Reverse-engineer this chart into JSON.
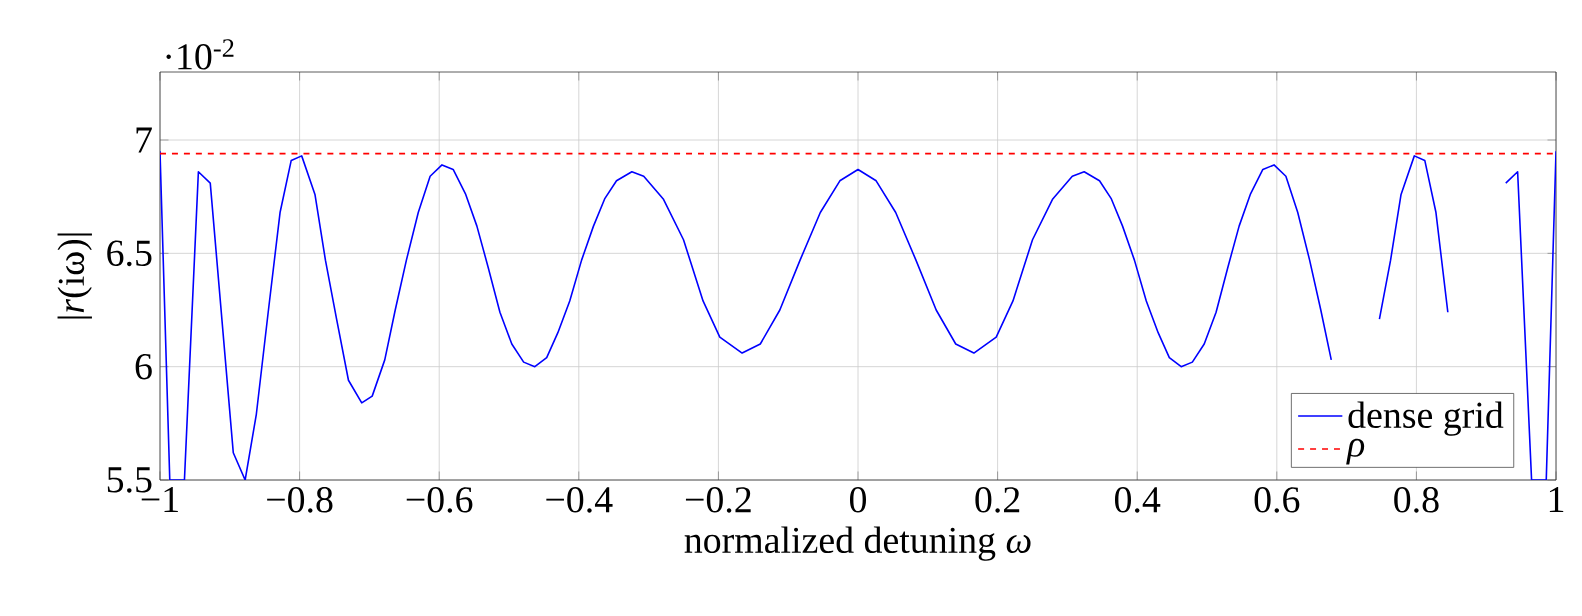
{
  "chart_data": {
    "type": "line",
    "xlabel": "normalized detuning *ω*",
    "ylabel": "|*r*(iω)|",
    "annotations": [
      "·10$^{-2}$"
    ],
    "xlim": [
      -1,
      1
    ],
    "ylim": [
      5.5,
      7.3
    ],
    "xticks": [
      {
        "value": -1,
        "label": "−1"
      },
      {
        "value": -0.8,
        "label": "−0.8"
      },
      {
        "value": -0.6,
        "label": "−0.6"
      },
      {
        "value": -0.4,
        "label": "−0.4"
      },
      {
        "value": -0.2,
        "label": "−0.2"
      },
      0,
      0.2,
      0.4,
      0.6,
      0.8,
      1
    ],
    "yticks": [
      5.5,
      6,
      6.5,
      7
    ],
    "grid": true,
    "legend": "bottom right",
    "marker": "none",
    "series": [
      {
        "name": "dense grid",
        "color": "#0000ff",
        "line_style": "solid",
        "x": [
          -1,
          -0.986,
          -0.965,
          -0.945,
          -0.928,
          -0.895,
          -0.878,
          -0.862,
          -0.845,
          -0.828,
          -0.812,
          -0.797,
          -0.778,
          -0.763,
          -0.747,
          -0.73,
          -0.711,
          -0.696,
          -0.678,
          -0.663,
          -0.647,
          -0.63,
          -0.613,
          -0.596,
          -0.58,
          -0.562,
          -0.546,
          -0.53,
          -0.513,
          -0.496,
          -0.479,
          -0.463,
          -0.446,
          -0.43,
          -0.413,
          -0.396,
          -0.379,
          -0.363,
          -0.346,
          -0.324,
          -0.307,
          -0.279,
          -0.25,
          -0.222,
          -0.198,
          -0.166,
          -0.14,
          -0.112,
          -0.083,
          -0.054,
          -0.026,
          0,
          0.026,
          0.054,
          0.083,
          0.112,
          0.14,
          0.166,
          0.198,
          0.222,
          0.25,
          0.279,
          0.307,
          0.324,
          0.346,
          0.363,
          0.379,
          0.396,
          0.413,
          0.43,
          0.446,
          0.463,
          0.479,
          0.496,
          0.513,
          0.53,
          0.546,
          0.562,
          0.58,
          0.596,
          0.613,
          0.63,
          0.647,
          0.663,
          0.678,
          0.696,
          0.711,
          0.73,
          0.747,
          0.763,
          0.778,
          0.797,
          0.812,
          0.828,
          0.845,
          0.862,
          0.878,
          0.895,
          0.928,
          0.945,
          0.965,
          0.986,
          1
        ],
        "values": [
          6.95,
          5.5,
          5.5,
          6.86,
          6.81,
          5.62,
          5.5,
          5.79,
          6.24,
          6.68,
          6.91,
          6.93,
          6.76,
          6.47,
          6.21,
          5.94,
          5.84,
          5.87,
          6.03,
          6.25,
          6.47,
          6.68,
          6.84,
          6.89,
          6.87,
          6.76,
          6.62,
          6.44,
          6.24,
          6.1,
          6.02,
          6.0,
          6.04,
          6.15,
          6.29,
          6.47,
          6.62,
          6.74,
          6.82,
          6.86,
          6.84,
          6.74,
          6.56,
          6.29,
          6.13,
          6.06,
          6.1,
          6.25,
          6.47,
          6.68,
          6.82,
          6.87,
          6.82,
          6.68,
          6.47,
          6.25,
          6.1,
          6.06,
          6.13,
          6.29,
          6.56,
          6.74,
          6.84,
          6.86,
          6.82,
          6.74,
          6.62,
          6.47,
          6.29,
          6.15,
          6.04,
          6.0,
          6.02,
          6.1,
          6.24,
          6.44,
          6.62,
          6.76,
          6.87,
          6.89,
          6.84,
          6.68,
          6.47,
          6.25,
          6.03,
          null,
          null,
          null,
          6.21,
          6.47,
          6.76,
          6.93,
          6.91,
          6.68,
          6.24,
          null,
          null,
          null,
          6.81,
          6.86,
          5.5,
          5.5,
          6.95
        ]
      }
    ],
    "ref_lines": [
      {
        "axis": "y",
        "value": 6.94,
        "label": "ρ",
        "color": "#ff0000",
        "line_style": "dashed"
      }
    ]
  }
}
